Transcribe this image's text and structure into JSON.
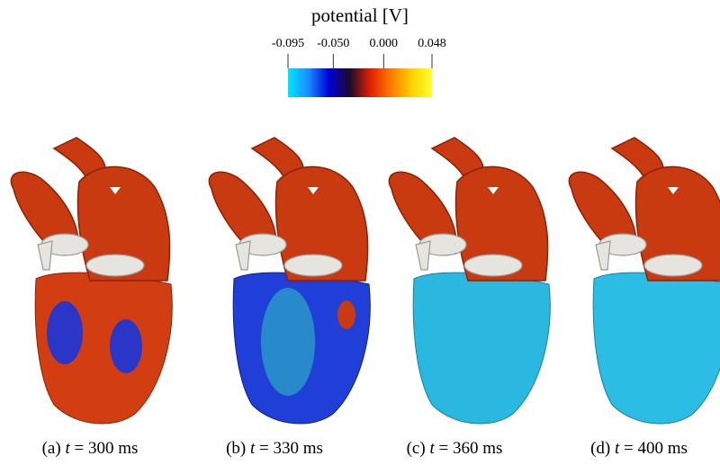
{
  "colorbar": {
    "title": "potential [V]",
    "range": [
      -0.095,
      0.048
    ],
    "ticks": [
      -0.095,
      {
        "value": -0.05,
        "label": "-0.050"
      },
      {
        "value": 0,
        "label": "0.000"
      },
      0.048
    ],
    "colors": [
      "#00e5ff",
      "#1a8cff",
      "#0000d8",
      "#1a0a2a",
      "#e02000",
      "#ff7a00",
      "#ffd000",
      "#ffff30"
    ]
  },
  "captions": [
    {
      "label": "(a)",
      "symbol": "t",
      "rest": "= 300 ms"
    },
    {
      "label": "(b)",
      "symbol": "t",
      "rest": "= 330 ms"
    },
    {
      "label": "(c)",
      "symbol": "t",
      "rest": "= 360 ms"
    },
    {
      "label": "(d)",
      "symbol": "t",
      "rest": "= 400 ms"
    }
  ]
}
